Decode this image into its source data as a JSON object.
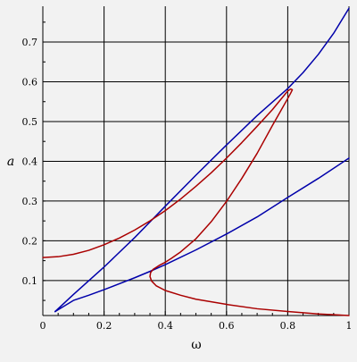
{
  "chart_data": {
    "type": "line",
    "title": "",
    "xlabel": "ω",
    "ylabel": "a",
    "xlim": [
      0,
      1
    ],
    "ylim": [
      0.012,
      0.79
    ],
    "grid": true,
    "legend": "none",
    "x_ticks": [
      0,
      0.2,
      0.4,
      0.6,
      0.8,
      1
    ],
    "x_tick_labels": [
      "0",
      "0.2",
      "0.4",
      "0.6",
      "0.8",
      "1"
    ],
    "y_ticks": [
      0.1,
      0.2,
      0.3,
      0.4,
      0.5,
      0.6,
      0.7
    ],
    "y_tick_labels": [
      "0.1",
      "0.2",
      "0.3",
      "0.4",
      "0.5",
      "0.6",
      "0.7"
    ],
    "colors": {
      "background": "#f2f2f2",
      "grid": "#000000",
      "blue": "#0000aa",
      "red": "#aa0000"
    },
    "series": [
      {
        "color": "#0000aa",
        "points": [
          [
            0.04,
            0.022
          ],
          [
            0.07,
            0.036
          ],
          [
            0.1,
            0.05
          ],
          [
            0.15,
            0.063
          ],
          [
            0.2,
            0.077
          ],
          [
            0.25,
            0.092
          ],
          [
            0.3,
            0.107
          ],
          [
            0.35,
            0.123
          ],
          [
            0.4,
            0.14
          ],
          [
            0.5,
            0.177
          ],
          [
            0.6,
            0.217
          ],
          [
            0.7,
            0.26
          ],
          [
            0.8,
            0.309
          ],
          [
            0.9,
            0.357
          ],
          [
            1.0,
            0.408
          ]
        ]
      },
      {
        "color": "#0000aa",
        "points": [
          [
            0.04,
            0.022
          ],
          [
            0.1,
            0.065
          ],
          [
            0.2,
            0.134
          ],
          [
            0.3,
            0.208
          ],
          [
            0.4,
            0.287
          ],
          [
            0.5,
            0.365
          ],
          [
            0.6,
            0.441
          ],
          [
            0.7,
            0.515
          ],
          [
            0.75,
            0.549
          ],
          [
            0.8,
            0.583
          ],
          [
            0.85,
            0.623
          ],
          [
            0.9,
            0.669
          ],
          [
            0.95,
            0.722
          ],
          [
            1.0,
            0.785
          ]
        ]
      },
      {
        "color": "#aa0000",
        "points": [
          [
            0.0,
            0.158
          ],
          [
            0.05,
            0.16
          ],
          [
            0.1,
            0.166
          ],
          [
            0.15,
            0.176
          ],
          [
            0.2,
            0.19
          ],
          [
            0.25,
            0.207
          ],
          [
            0.3,
            0.227
          ],
          [
            0.35,
            0.25
          ],
          [
            0.4,
            0.276
          ],
          [
            0.45,
            0.305
          ],
          [
            0.5,
            0.337
          ],
          [
            0.55,
            0.371
          ],
          [
            0.6,
            0.408
          ],
          [
            0.65,
            0.447
          ],
          [
            0.7,
            0.488
          ],
          [
            0.75,
            0.53
          ],
          [
            0.8,
            0.577
          ],
          [
            0.81,
            0.582
          ],
          [
            0.815,
            0.58
          ],
          [
            0.81,
            0.572
          ],
          [
            0.8,
            0.558
          ],
          [
            0.75,
            0.49
          ],
          [
            0.7,
            0.42
          ],
          [
            0.65,
            0.357
          ],
          [
            0.6,
            0.299
          ],
          [
            0.55,
            0.248
          ],
          [
            0.5,
            0.205
          ],
          [
            0.45,
            0.172
          ],
          [
            0.42,
            0.156
          ],
          [
            0.4,
            0.146
          ],
          [
            0.38,
            0.138
          ],
          [
            0.36,
            0.128
          ],
          [
            0.352,
            0.12
          ],
          [
            0.35,
            0.11
          ],
          [
            0.355,
            0.099
          ],
          [
            0.37,
            0.087
          ],
          [
            0.4,
            0.075
          ],
          [
            0.45,
            0.063
          ],
          [
            0.5,
            0.053
          ],
          [
            0.6,
            0.04
          ],
          [
            0.7,
            0.029
          ],
          [
            0.8,
            0.022
          ],
          [
            0.9,
            0.016
          ],
          [
            1.0,
            0.012
          ]
        ]
      }
    ]
  }
}
